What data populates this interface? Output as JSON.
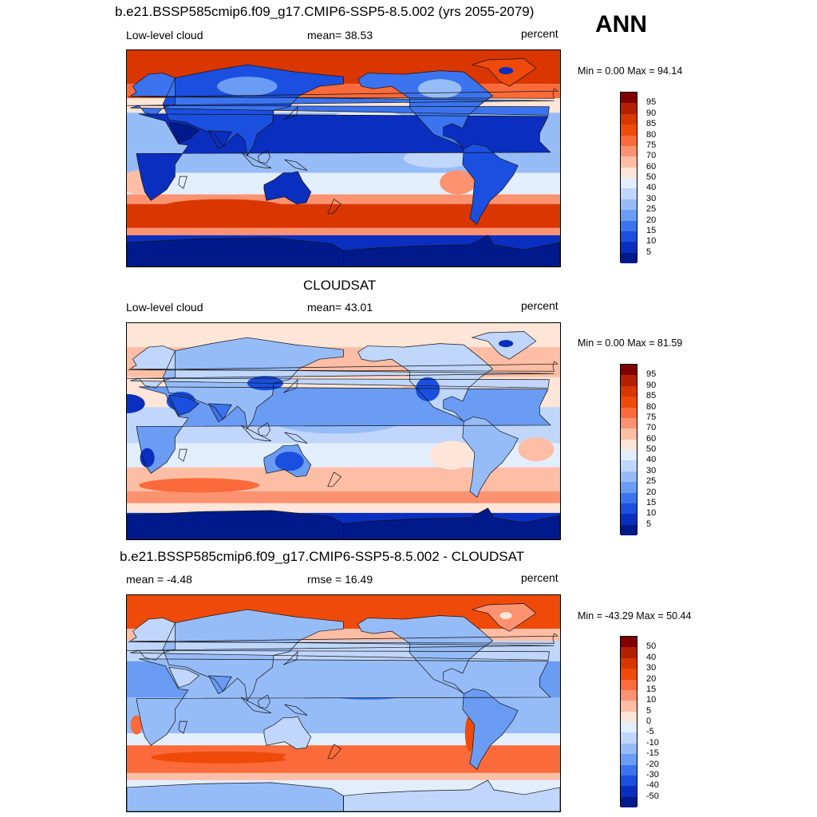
{
  "season": "ANN",
  "panels": [
    {
      "title": "b.e21.BSSP585cmip6.f09_g17.CMIP6-SSP5-8.5.002 (yrs 2055-2079)",
      "left_text": "Low-level cloud",
      "center_text": "mean=  38.53",
      "units": "percent",
      "minmax": "Min =    0.00 Max =  94.14",
      "colorbar": {
        "labels": [
          "95",
          "90",
          "85",
          "80",
          "75",
          "70",
          "60",
          "50",
          "40",
          "30",
          "25",
          "20",
          "15",
          "10",
          "5"
        ],
        "colors": [
          "#800000",
          "#b22000",
          "#d93600",
          "#ef4a0a",
          "#fb6a3a",
          "#fc9270",
          "#fdbea5",
          "#fde5d8",
          "#e3eefd",
          "#c0d6fb",
          "#96bcf8",
          "#6a9cf4",
          "#3b74ee",
          "#1a4fe0",
          "#0a2fc0",
          "#001a8c"
        ]
      },
      "field": "model"
    },
    {
      "title": "CLOUDSAT",
      "left_text": "Low-level cloud",
      "center_text": "mean=  43.01",
      "units": "percent",
      "minmax": "Min =    0.00 Max =  81.59",
      "colorbar": {
        "labels": [
          "95",
          "90",
          "85",
          "80",
          "75",
          "70",
          "60",
          "50",
          "40",
          "30",
          "25",
          "20",
          "15",
          "10",
          "5"
        ],
        "colors": [
          "#800000",
          "#b22000",
          "#d93600",
          "#ef4a0a",
          "#fb6a3a",
          "#fc9270",
          "#fdbea5",
          "#fde5d8",
          "#e3eefd",
          "#c0d6fb",
          "#96bcf8",
          "#6a9cf4",
          "#3b74ee",
          "#1a4fe0",
          "#0a2fc0",
          "#001a8c"
        ]
      },
      "field": "obs"
    },
    {
      "title": "b.e21.BSSP585cmip6.f09_g17.CMIP6-SSP5-8.5.002 - CLOUDSAT",
      "left_text": "mean =  -4.48",
      "center_text": "rmse =  16.49",
      "units": "percent",
      "minmax": "Min = -43.29 Max =  50.44",
      "colorbar": {
        "labels": [
          "50",
          "40",
          "30",
          "20",
          "15",
          "10",
          "5",
          "0",
          "-5",
          "-10",
          "-15",
          "-20",
          "-30",
          "-40",
          "-50"
        ],
        "colors": [
          "#800000",
          "#b22000",
          "#d93600",
          "#ef4a0a",
          "#fb6a3a",
          "#fc9270",
          "#fdbea5",
          "#fde5d8",
          "#e3eefd",
          "#c0d6fb",
          "#96bcf8",
          "#6a9cf4",
          "#3b74ee",
          "#1a4fe0",
          "#0a2fc0",
          "#001a8c"
        ]
      },
      "field": "diff"
    }
  ]
}
